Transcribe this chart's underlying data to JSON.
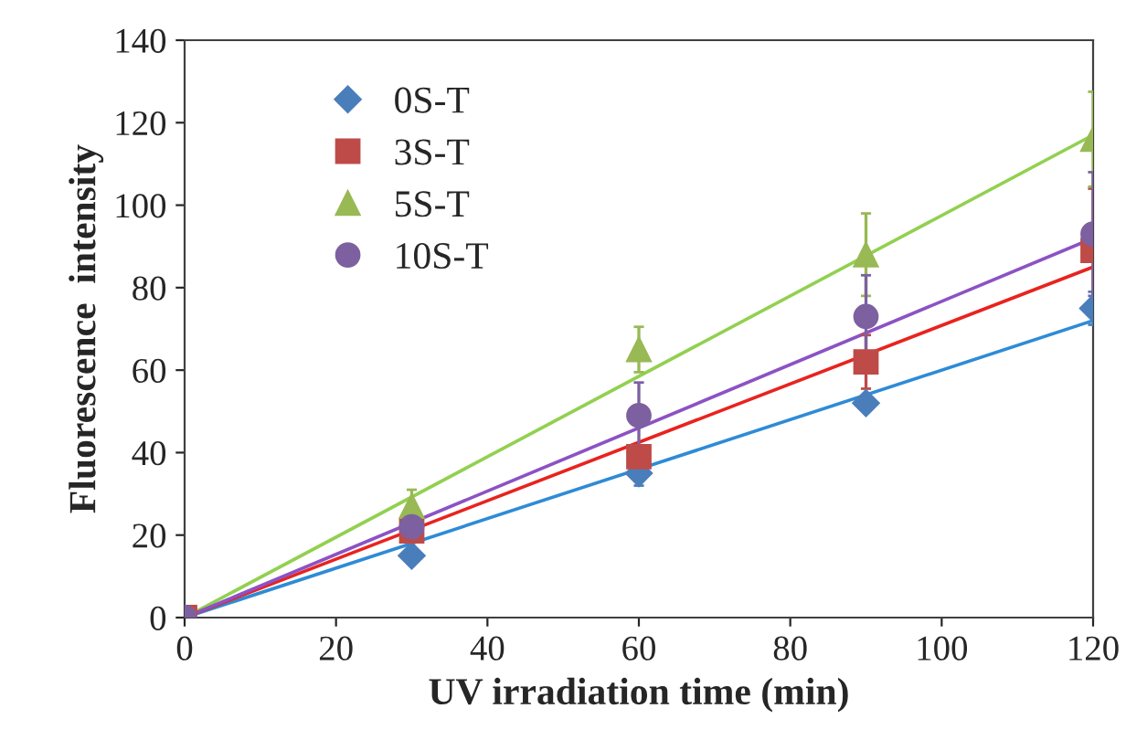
{
  "chart_data": {
    "type": "scatter",
    "xlabel": "UV irradiation time (min)",
    "ylabel": "Fluorescence  intensity",
    "xlim": [
      0,
      120
    ],
    "ylim": [
      0,
      140
    ],
    "xticks": [
      0,
      20,
      40,
      60,
      80,
      100,
      120
    ],
    "yticks": [
      0,
      20,
      40,
      60,
      80,
      100,
      120,
      140
    ],
    "grid": false,
    "legend": "top left",
    "series": [
      {
        "name": "0S-T",
        "marker": "diamond",
        "color": "#4a7ebb",
        "x": [
          30,
          60,
          90,
          120
        ],
        "values": [
          15,
          35,
          52,
          75
        ],
        "errors": [
          1,
          3,
          1.5,
          4
        ]
      },
      {
        "name": "3S-T",
        "marker": "square",
        "color": "#be4b48",
        "x": [
          0,
          30,
          60,
          90,
          120
        ],
        "values": [
          0,
          21,
          39,
          62,
          89
        ],
        "errors": [
          null,
          1.5,
          2,
          6.5,
          15
        ]
      },
      {
        "name": "5S-T",
        "marker": "triangle",
        "color": "#98b954",
        "x": [
          30,
          60,
          90,
          120
        ],
        "values": [
          27,
          65,
          88,
          116
        ],
        "errors": [
          4,
          5.5,
          10,
          11.5
        ]
      },
      {
        "name": "10S-T",
        "marker": "circle",
        "color": "#7d60a0",
        "x": [
          0,
          30,
          60,
          90,
          120
        ],
        "values": [
          0,
          22,
          49,
          73,
          93
        ],
        "errors": [
          null,
          2,
          8,
          10,
          15
        ]
      },
      {
        "type": "line",
        "color": "#2e8bd6",
        "x": [
          0,
          120
        ],
        "values": [
          0,
          72
        ]
      },
      {
        "type": "line",
        "color": "#e8231f",
        "x": [
          0,
          120
        ],
        "values": [
          0,
          85
        ]
      },
      {
        "type": "line",
        "color": "#92d050",
        "x": [
          0,
          120
        ],
        "values": [
          0,
          117
        ]
      },
      {
        "type": "line",
        "color": "#8c52c4",
        "x": [
          0,
          120
        ],
        "values": [
          0,
          92
        ]
      }
    ]
  }
}
